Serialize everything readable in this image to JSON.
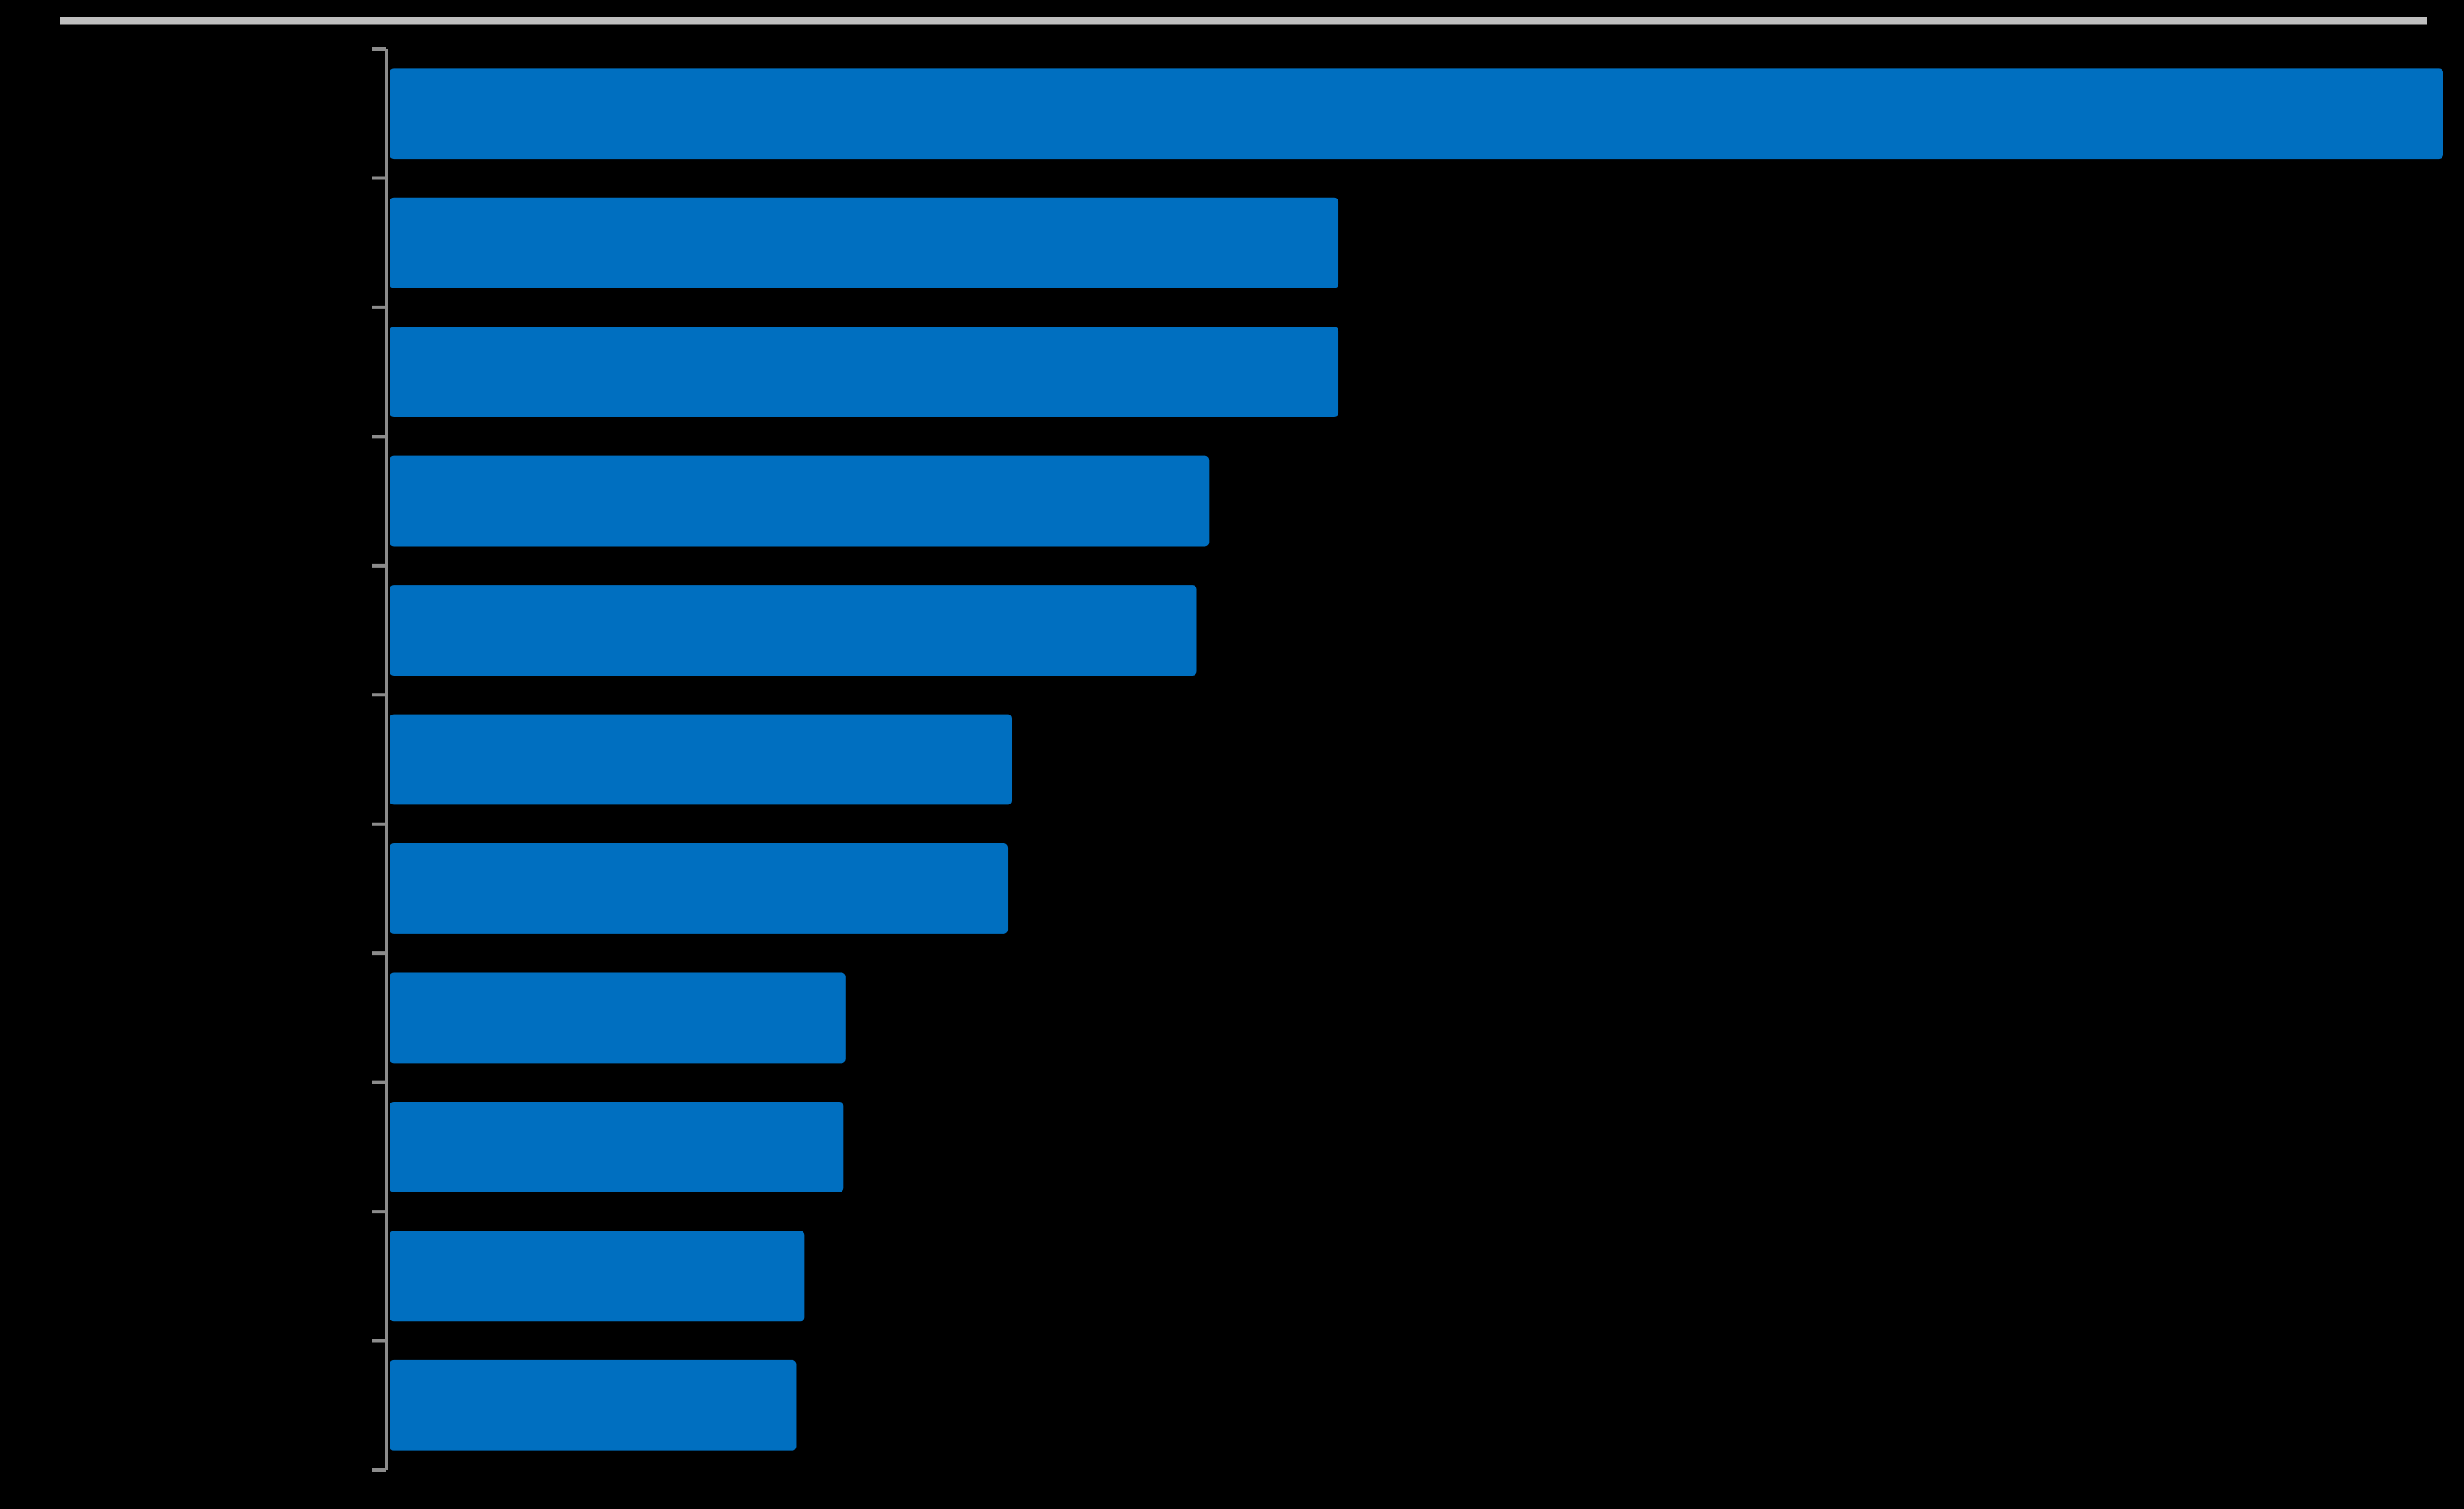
{
  "chart_data": {
    "type": "bar",
    "orientation": "horizontal",
    "categories": [
      null,
      null,
      null,
      null,
      null,
      null,
      null,
      null,
      null,
      null,
      null
    ],
    "values": [
      100,
      46.2,
      46.2,
      39.9,
      39.3,
      30.3,
      30.1,
      22.2,
      22.1,
      20.2,
      19.8
    ],
    "color": "#006fc0",
    "xlim": [
      0,
      100
    ]
  }
}
